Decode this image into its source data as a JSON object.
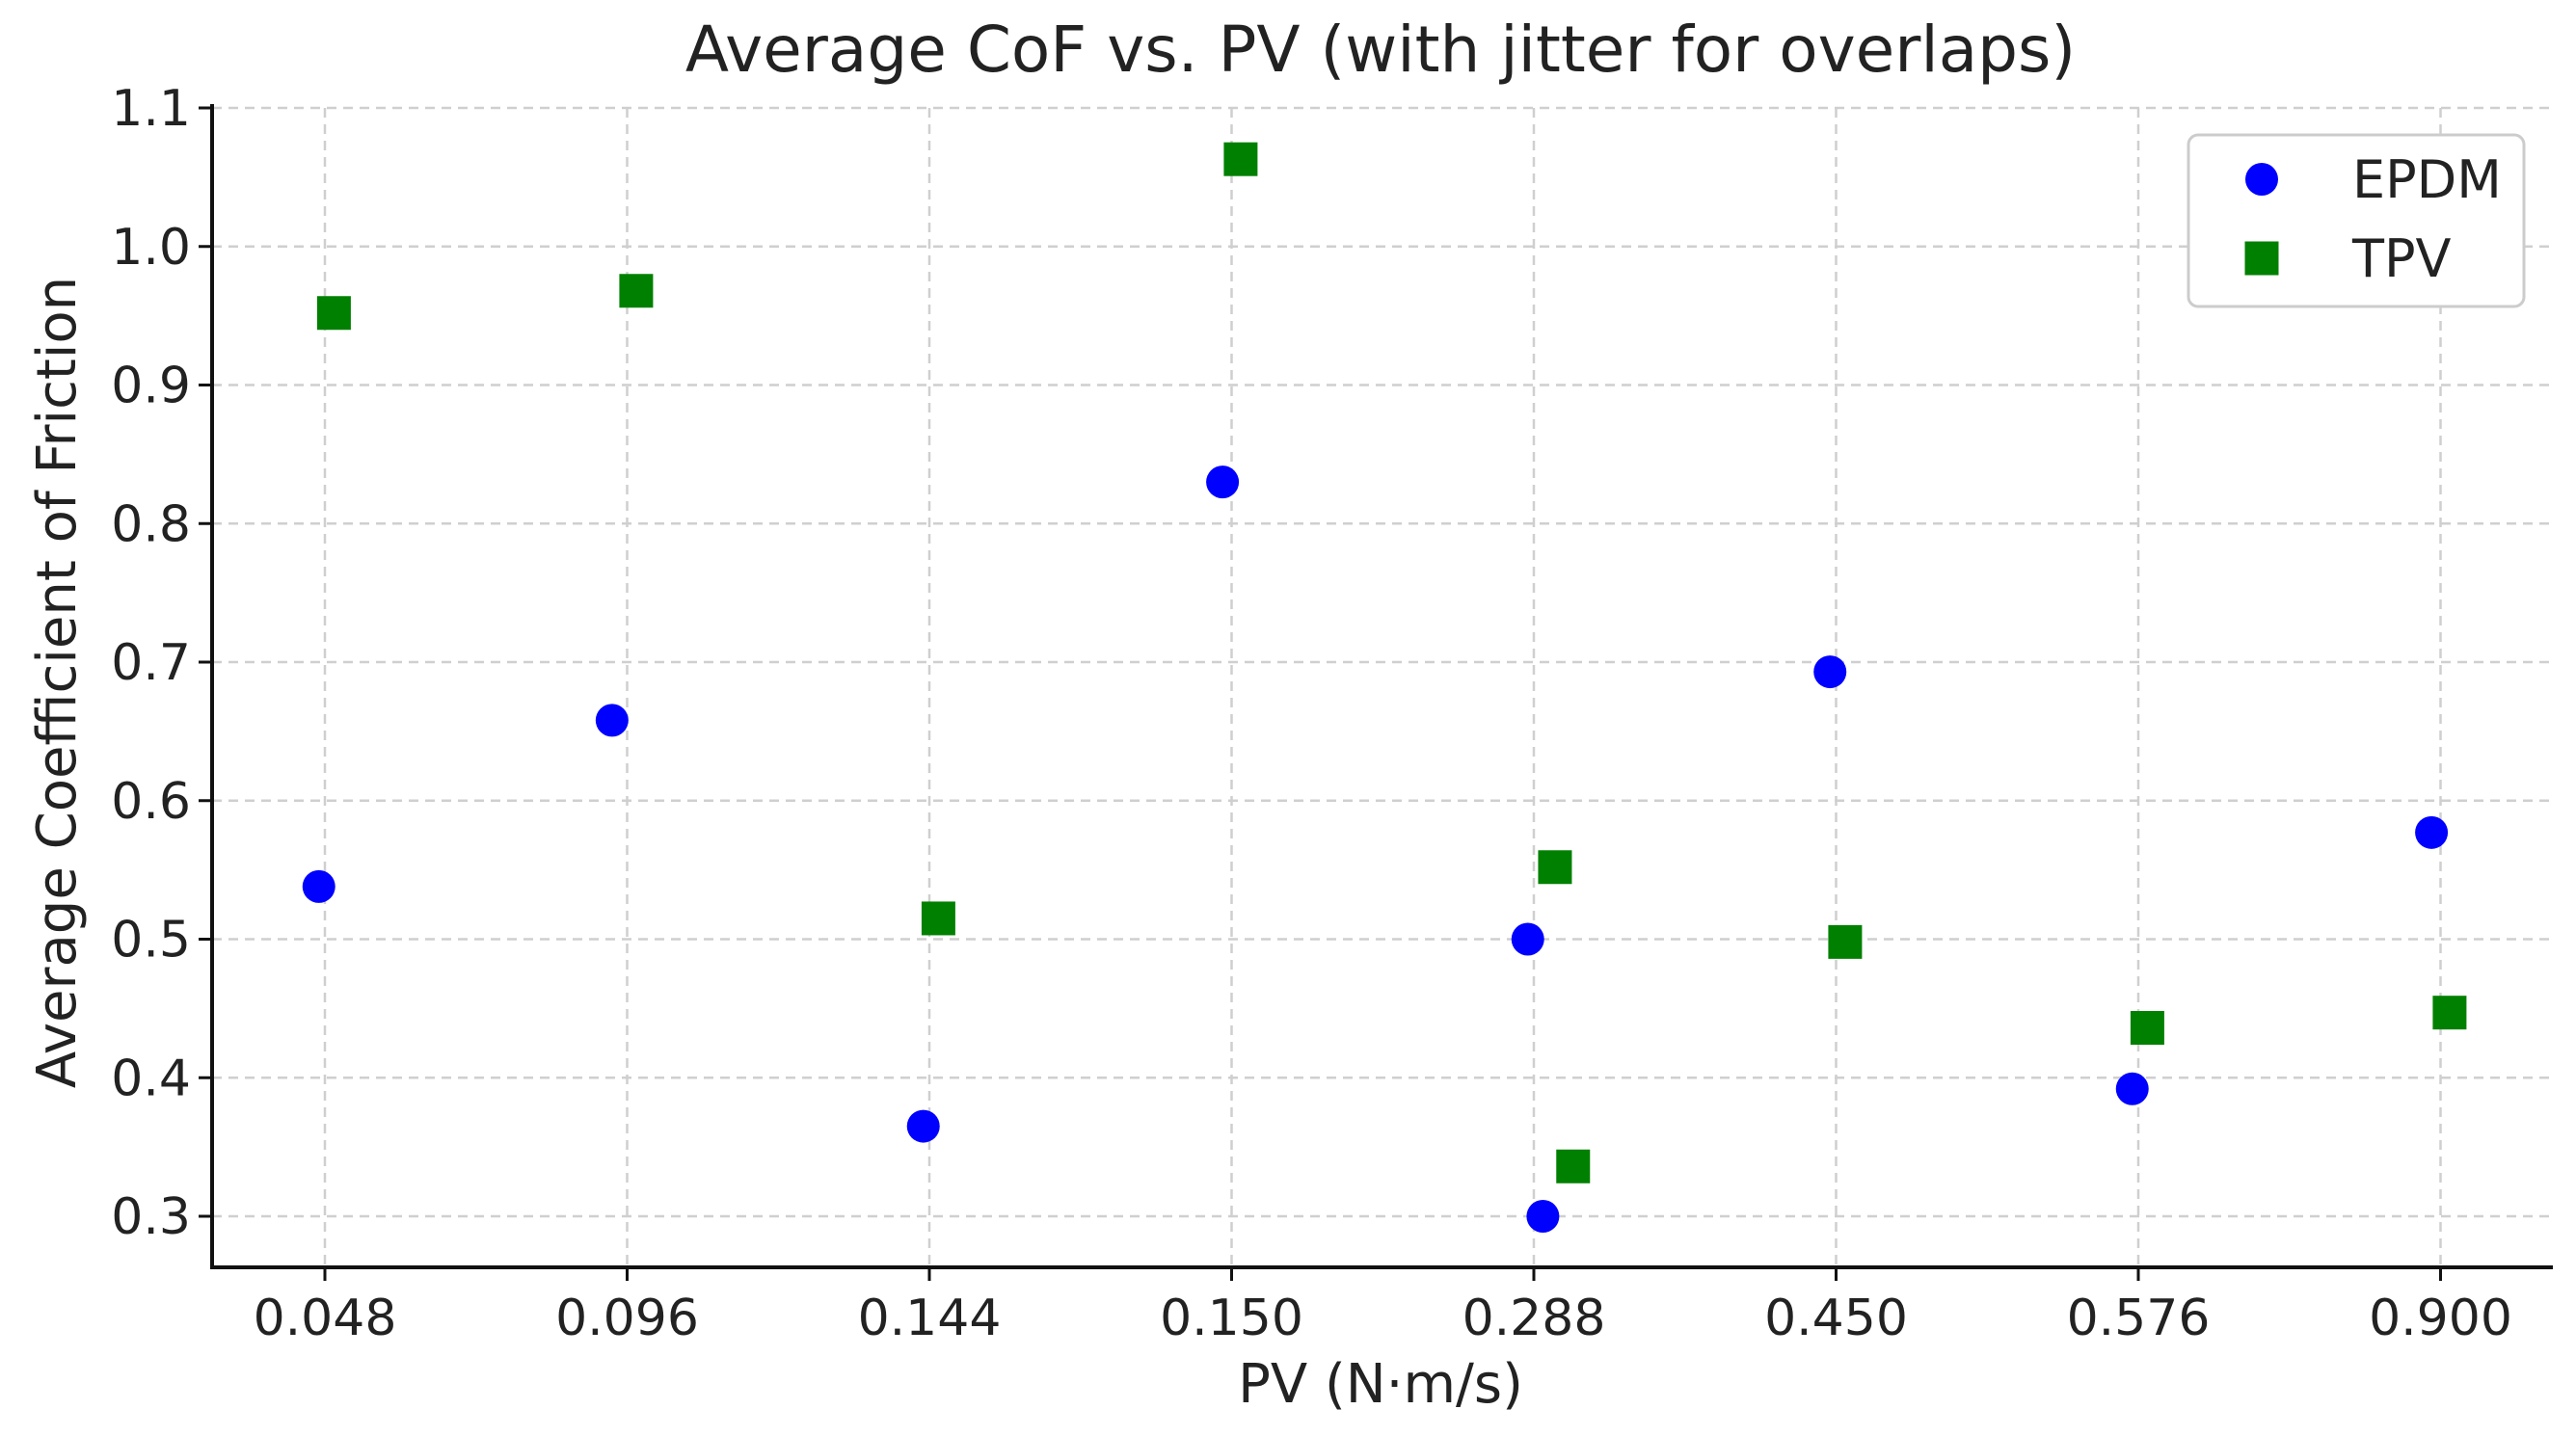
{
  "chart_data": {
    "type": "scatter",
    "title": "Average CoF vs. PV (with jitter for overlaps)",
    "xlabel": "PV (N·m/s)",
    "ylabel": "Average Coefficient of Friction",
    "categories": [
      "0.048",
      "0.096",
      "0.144",
      "0.150",
      "0.288",
      "0.450",
      "0.576",
      "0.900"
    ],
    "yticks": [
      "0.3",
      "0.4",
      "0.5",
      "0.6",
      "0.7",
      "0.8",
      "0.9",
      "1.0",
      "1.1"
    ],
    "ylim": [
      0.26,
      1.1
    ],
    "grid": true,
    "legend_position": "top-right",
    "series": [
      {
        "name": "EPDM",
        "marker": "circle",
        "color": "#0000ff",
        "points": [
          {
            "category_index": 0,
            "jitter": -0.02,
            "y": 0.538
          },
          {
            "category_index": 1,
            "jitter": -0.05,
            "y": 0.658
          },
          {
            "category_index": 2,
            "jitter": -0.02,
            "y": 0.365
          },
          {
            "category_index": 3,
            "jitter": -0.03,
            "y": 0.83
          },
          {
            "category_index": 4,
            "jitter": -0.02,
            "y": 0.5
          },
          {
            "category_index": 4,
            "jitter": 0.03,
            "y": 0.3
          },
          {
            "category_index": 5,
            "jitter": -0.02,
            "y": 0.693
          },
          {
            "category_index": 6,
            "jitter": -0.02,
            "y": 0.392
          },
          {
            "category_index": 7,
            "jitter": -0.03,
            "y": 0.577
          }
        ]
      },
      {
        "name": "TPV",
        "marker": "square",
        "color": "#008000",
        "points": [
          {
            "category_index": 0,
            "jitter": 0.03,
            "y": 0.952
          },
          {
            "category_index": 1,
            "jitter": 0.03,
            "y": 0.968
          },
          {
            "category_index": 2,
            "jitter": 0.03,
            "y": 0.515
          },
          {
            "category_index": 3,
            "jitter": 0.03,
            "y": 1.063
          },
          {
            "category_index": 4,
            "jitter": 0.07,
            "y": 0.552
          },
          {
            "category_index": 4,
            "jitter": 0.13,
            "y": 0.336
          },
          {
            "category_index": 5,
            "jitter": 0.03,
            "y": 0.498
          },
          {
            "category_index": 6,
            "jitter": 0.03,
            "y": 0.436
          },
          {
            "category_index": 7,
            "jitter": 0.03,
            "y": 0.447
          }
        ]
      }
    ]
  }
}
